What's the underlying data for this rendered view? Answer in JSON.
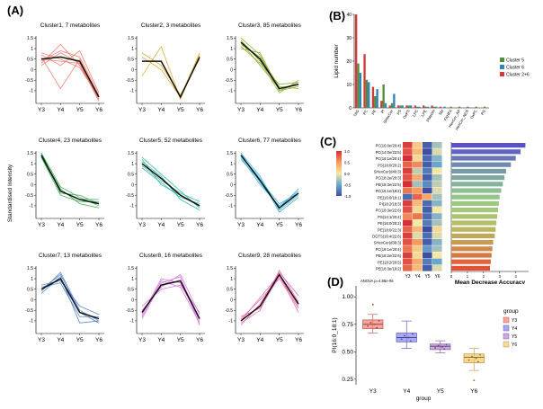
{
  "panels": {
    "A": "(A)",
    "B": "(B)",
    "C": "(C)",
    "D": "(D)"
  },
  "colors": {
    "c1": "#f07060",
    "c2": "#d9a21a",
    "c3": "#7faa18",
    "c4": "#21a03c",
    "c5": "#1fb39a",
    "c6": "#22aadd",
    "c7": "#3f78c8",
    "c8": "#d667e0",
    "c9": "#ee5ca8",
    "b_c5": "#4f8f3a",
    "b_c9": "#2e84b8",
    "b_c26": "#d23a3a",
    "d_y3": "#f8766d",
    "d_y4": "#7b7bf0",
    "d_y5": "#b07bd0",
    "d_y6": "#f4c55a"
  },
  "cluster_axis": {
    "ylabel": "Standardised Intensity",
    "yticks": [
      "-1",
      "-0.5",
      "0",
      "0.5",
      "1",
      "1.5"
    ],
    "xticks": [
      "Y3",
      "Y4",
      "Y5",
      "Y6"
    ]
  },
  "chart_data": [
    {
      "type": "line",
      "panel": "A",
      "x": [
        "Y3",
        "Y4",
        "Y5",
        "Y6"
      ],
      "ylim": [
        -1.6,
        1.6
      ],
      "clusters": [
        {
          "id": "c1",
          "title": "Cluster1, 7 metabolites",
          "mean": [
            0.5,
            0.6,
            0.4,
            -1.3
          ],
          "members": [
            [
              0.3,
              1.2,
              0.2,
              -1.4
            ],
            [
              0.7,
              0.2,
              0.9,
              -1.1
            ],
            [
              0.6,
              -0.9,
              0.5,
              -1.3
            ],
            [
              0.4,
              0.9,
              0.6,
              -1.2
            ],
            [
              0.2,
              0.8,
              0.3,
              -1.5
            ],
            [
              0.8,
              0.5,
              0.1,
              -1.3
            ],
            [
              0.5,
              0.4,
              0.3,
              -1.4
            ]
          ]
        },
        {
          "id": "c2",
          "title": "Cluster2, 3 metabolites",
          "mean": [
            0.4,
            0.4,
            -1.3,
            0.6
          ],
          "members": [
            [
              -0.3,
              1.1,
              -1.4,
              0.7
            ],
            [
              0.8,
              0.2,
              -1.2,
              0.5
            ],
            [
              0.6,
              0.0,
              -1.3,
              0.8
            ]
          ]
        },
        {
          "id": "c3",
          "title": "Cluster3, 85 metabolites",
          "mean": [
            1.3,
            0.5,
            -0.9,
            -0.7
          ],
          "members": [
            [
              1.5,
              0.7,
              -1.0,
              -0.8
            ],
            [
              1.1,
              0.3,
              -0.7,
              -0.6
            ],
            [
              1.4,
              0.4,
              -1.1,
              -0.5
            ],
            [
              1.2,
              0.6,
              -0.8,
              -0.9
            ],
            [
              1.3,
              0.2,
              -0.9,
              -0.7
            ],
            [
              1.0,
              0.8,
              -1.0,
              -0.6
            ]
          ]
        },
        {
          "id": "c4",
          "title": "Cluster4, 23 metabolites",
          "mean": [
            1.4,
            -0.3,
            -0.7,
            -0.9
          ],
          "members": [
            [
              1.5,
              -0.1,
              -0.6,
              -1.0
            ],
            [
              1.3,
              -0.5,
              -0.8,
              -0.8
            ],
            [
              1.4,
              -0.2,
              -0.9,
              -1.1
            ],
            [
              1.5,
              -0.4,
              -0.5,
              -0.9
            ],
            [
              1.3,
              -0.3,
              -0.7,
              -0.7
            ]
          ]
        },
        {
          "id": "c5",
          "title": "Cluster5, 52 metabolites",
          "mean": [
            1.0,
            0.3,
            -0.5,
            -1.0
          ],
          "members": [
            [
              1.3,
              0.5,
              -0.3,
              -1.1
            ],
            [
              0.8,
              0.1,
              -0.6,
              -0.9
            ],
            [
              1.1,
              0.4,
              -0.7,
              -1.2
            ],
            [
              0.9,
              0.2,
              -0.4,
              -0.8
            ],
            [
              1.2,
              0.0,
              -0.5,
              -1.0
            ]
          ]
        },
        {
          "id": "c6",
          "title": "Cluster6, 77 metabolites",
          "mean": [
            1.4,
            0.2,
            -1.1,
            -0.4
          ],
          "members": [
            [
              1.5,
              0.4,
              -1.2,
              -0.5
            ],
            [
              1.3,
              0.0,
              -1.0,
              -0.3
            ],
            [
              1.4,
              0.3,
              -1.3,
              -0.6
            ],
            [
              1.5,
              0.1,
              -1.1,
              -0.2
            ],
            [
              1.2,
              0.2,
              -0.9,
              -0.4
            ]
          ]
        },
        {
          "id": "c7",
          "title": "Cluster7, 13 metabolites",
          "mean": [
            0.5,
            1.0,
            -0.6,
            -0.9
          ],
          "members": [
            [
              0.4,
              1.3,
              -0.5,
              -1.0
            ],
            [
              0.6,
              0.8,
              -0.8,
              -0.8
            ],
            [
              0.3,
              1.1,
              -1.1,
              -1.0
            ],
            [
              0.7,
              0.9,
              -0.3,
              -0.7
            ],
            [
              0.5,
              1.2,
              -0.6,
              -1.1
            ]
          ]
        },
        {
          "id": "c8",
          "title": "Cluster8, 16 metabolites",
          "mean": [
            -0.6,
            0.7,
            0.9,
            -0.9
          ],
          "members": [
            [
              -0.9,
              0.8,
              1.1,
              -1.2
            ],
            [
              -0.3,
              0.5,
              0.7,
              -0.6
            ],
            [
              -0.7,
              1.0,
              0.8,
              -1.0
            ],
            [
              -0.5,
              0.6,
              1.2,
              -0.7
            ],
            [
              -0.8,
              0.9,
              0.6,
              -1.1
            ]
          ]
        },
        {
          "id": "c9",
          "title": "Cluster9, 28 metabolites",
          "mean": [
            -1.0,
            -0.3,
            1.2,
            -0.2
          ],
          "members": [
            [
              -1.1,
              -0.5,
              1.4,
              -0.1
            ],
            [
              -0.9,
              0.0,
              1.0,
              -0.4
            ],
            [
              -1.2,
              -0.2,
              1.3,
              0.2
            ],
            [
              -0.8,
              -0.4,
              1.1,
              -0.3
            ],
            [
              -1.0,
              0.1,
              1.2,
              -0.6
            ]
          ]
        }
      ]
    },
    {
      "type": "bar",
      "panel": "B",
      "ylabel": "Lipid number",
      "yticks": [
        "0",
        "10",
        "20",
        "30",
        "40"
      ],
      "ylim": [
        0,
        40
      ],
      "categories": [
        "TAG",
        "PC",
        "PE",
        "PI",
        "SHexCer",
        "PS",
        "OxPS",
        "LPC",
        "LPE",
        "PMeOH",
        "SM",
        "FAHFA",
        "HexCer_AP",
        "HexCer_NDS",
        "OxPC",
        "PG"
      ],
      "series": [
        {
          "name": "Cluster 5",
          "color_key": "b_c5",
          "values": [
            19,
            12,
            5,
            10,
            2,
            1,
            1,
            0.5,
            0.5,
            0.5,
            0,
            0.5,
            0.5,
            0.5,
            0.5,
            0.5
          ]
        },
        {
          "name": "Cluster 6",
          "color_key": "b_c9",
          "values": [
            15,
            11,
            8,
            2,
            6,
            1,
            1,
            0.5,
            0.5,
            0.5,
            0.5,
            0,
            0,
            0,
            0,
            0
          ]
        },
        {
          "name": "Cluster 2+6",
          "color_key": "b_c26",
          "values": [
            40,
            23,
            9,
            3,
            1,
            1,
            1,
            1,
            1,
            1,
            0.5,
            0,
            0,
            0,
            0,
            0
          ]
        }
      ]
    },
    {
      "type": "heatmap",
      "panel": "C",
      "columns": [
        "Y3",
        "Y4",
        "Y5",
        "Y6"
      ],
      "scale_ticks": [
        "1.0",
        "0.5",
        "0.0",
        "-0.5",
        "-1.0"
      ],
      "rows": [
        "PC(16:0e/20:4)",
        "PC(14:0e/22:5)",
        "PC(16:1e/20:4)",
        "PS(18:0/20:2)",
        "SHexCer(d40:3)",
        "PC(18:2e/20:3)",
        "PE(18:3e/22:5)",
        "PC(16:1e/18:2)",
        "PE(16:0/18:1)",
        "PI(18:2/18:3)",
        "PC(18:3e/22:6)",
        "PS(14:1/20:4)",
        "PE(16:0/20:2)",
        "PE(18:0/22:3)",
        "DGTS(16:4/22:6)",
        "SHexCer(d39:3)",
        "PC(18:1e/20:4)",
        "PE(18:2e/22:6)",
        "PE(18:2/20:5)",
        "PE(18:3e/19:2)"
      ],
      "values": [
        [
          1.0,
          0.2,
          -1.0,
          -0.3
        ],
        [
          0.9,
          0.3,
          -1.1,
          -0.1
        ],
        [
          1.1,
          0.1,
          -0.9,
          -0.4
        ],
        [
          0.8,
          0.6,
          -1.0,
          -0.5
        ],
        [
          1.0,
          -0.2,
          -0.8,
          0.0
        ],
        [
          0.9,
          0.4,
          -1.0,
          -0.3
        ],
        [
          1.2,
          -0.3,
          -0.7,
          -0.2
        ],
        [
          0.7,
          0.5,
          -1.1,
          -0.1
        ],
        [
          -0.9,
          0.8,
          0.4,
          -0.3
        ],
        [
          1.0,
          0.3,
          -0.9,
          -0.4
        ],
        [
          0.9,
          0.1,
          -1.0,
          0.0
        ],
        [
          0.6,
          0.7,
          -0.9,
          -0.4
        ],
        [
          1.1,
          0.0,
          -0.8,
          -0.3
        ],
        [
          0.8,
          0.3,
          -1.2,
          0.1
        ],
        [
          1.0,
          -0.1,
          -0.9,
          -0.1
        ],
        [
          0.9,
          0.5,
          -1.0,
          -0.4
        ],
        [
          0.7,
          0.2,
          -0.6,
          -0.3
        ],
        [
          1.0,
          0.1,
          -1.1,
          0.0
        ],
        [
          0.9,
          0.4,
          -0.8,
          -0.5
        ],
        [
          0.8,
          0.3,
          -1.0,
          -0.1
        ]
      ]
    },
    {
      "type": "bar",
      "panel": "C-importance",
      "xlabel": "Mean Decrease Accuracy",
      "xticks": [
        "0",
        "1",
        "2",
        "3",
        "4"
      ],
      "xlim": [
        0,
        4.8
      ],
      "values": [
        4.6,
        4.3,
        4.0,
        3.7,
        3.4,
        3.3,
        3.2,
        3.1,
        3.0,
        2.95,
        2.9,
        2.85,
        2.8,
        2.75,
        2.7,
        2.6,
        2.55,
        2.5,
        2.45,
        2.4
      ]
    },
    {
      "type": "box",
      "panel": "D",
      "annotation": "ANOVA p=4.86e-06",
      "ylabel": "PI(16:0_18:1)",
      "xlabel": "group",
      "yticks": [
        "0.25",
        "0.50",
        "0.75",
        "1.00"
      ],
      "ylim": [
        0.2,
        1.1
      ],
      "categories": [
        "Y3",
        "Y4",
        "Y5",
        "Y6"
      ],
      "boxes": [
        {
          "name": "Y3",
          "color_key": "d_y3",
          "min": 0.67,
          "q1": 0.71,
          "median": 0.75,
          "q3": 0.79,
          "max": 0.84,
          "outliers": [
            0.93
          ]
        },
        {
          "name": "Y4",
          "color_key": "d_y4",
          "min": 0.53,
          "q1": 0.59,
          "median": 0.63,
          "q3": 0.67,
          "max": 0.78,
          "outliers": []
        },
        {
          "name": "Y5",
          "color_key": "d_y5",
          "min": 0.49,
          "q1": 0.52,
          "median": 0.55,
          "q3": 0.57,
          "max": 0.6,
          "outliers": []
        },
        {
          "name": "Y6",
          "color_key": "d_y6",
          "min": 0.33,
          "q1": 0.4,
          "median": 0.45,
          "q3": 0.48,
          "max": 0.53,
          "outliers": [
            0.24
          ]
        }
      ],
      "legend_title": "group",
      "legend": [
        "Y3",
        "Y4",
        "Y5",
        "Y6"
      ]
    }
  ]
}
